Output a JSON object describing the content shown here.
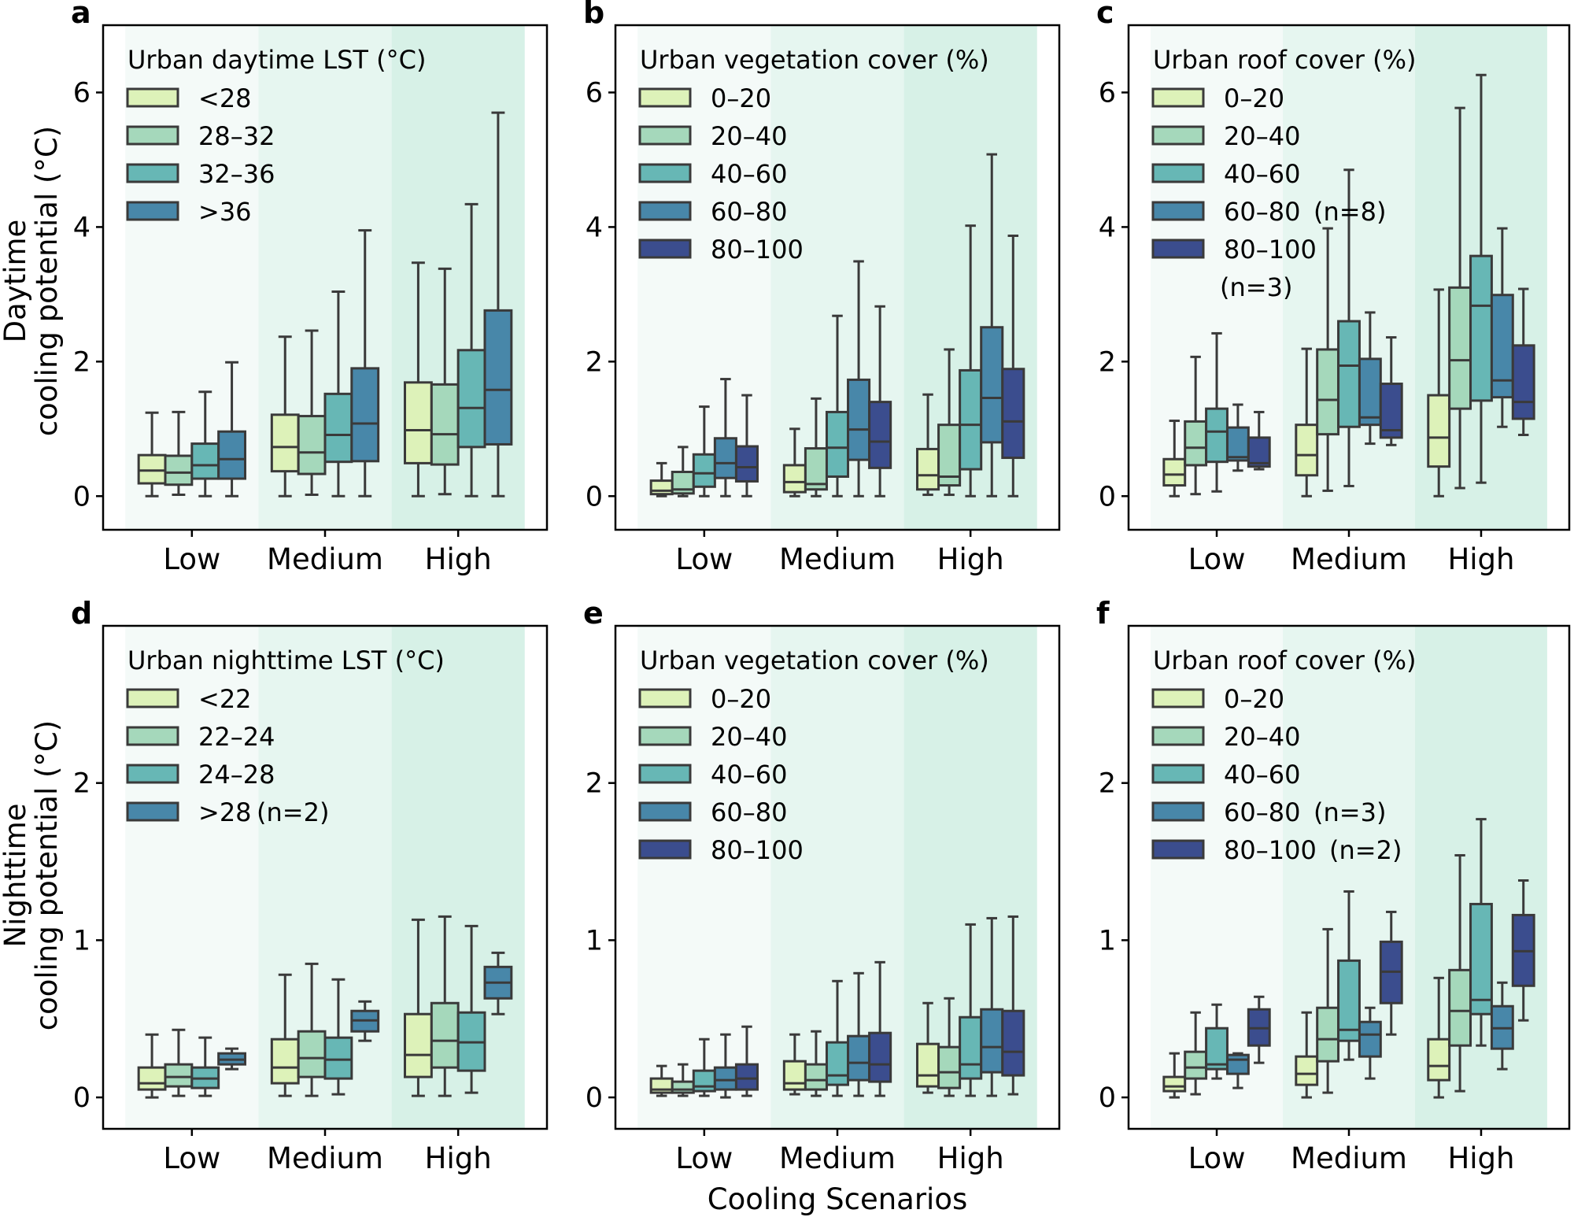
{
  "figure": {
    "xlabel": "Cooling Scenarios",
    "row_ylabels": [
      [
        "Daytime",
        "cooling potential (°C)"
      ],
      [
        "Nighttime",
        "cooling potential (°C)"
      ]
    ],
    "colors": {
      "series": [
        "#ddf2b9",
        "#a5d8bb",
        "#67b7b5",
        "#4887a9",
        "#3b4d8e"
      ],
      "bands": [
        "#f4faf8",
        "#e6f6f0",
        "#d7f1e7"
      ],
      "lines": "#3a3a3a"
    }
  },
  "chart_data": [
    {
      "panel": "a",
      "type": "box",
      "categories": [
        "Low",
        "Medium",
        "High"
      ],
      "ylim": [
        -0.5,
        7.0
      ],
      "yticks": [
        "0",
        "2",
        "4",
        "6"
      ],
      "ytick_values": [
        0,
        2,
        4,
        6
      ],
      "legend": {
        "title": "Urban daytime LST (°C)",
        "placement": "top-left",
        "entries": [
          {
            "label": "<28"
          },
          {
            "label": "28–32"
          },
          {
            "label": "32–36"
          },
          {
            "label": ">36"
          }
        ]
      },
      "stats_order": [
        "min",
        "q1",
        "median",
        "q3",
        "max"
      ],
      "series": [
        {
          "name": "<28",
          "boxes": [
            [
              0.0,
              0.19,
              0.38,
              0.61,
              1.24
            ],
            [
              0.0,
              0.37,
              0.73,
              1.21,
              2.37
            ],
            [
              0.0,
              0.49,
              0.98,
              1.69,
              3.47
            ]
          ]
        },
        {
          "name": "28–32",
          "boxes": [
            [
              0.02,
              0.17,
              0.35,
              0.6,
              1.25
            ],
            [
              0.02,
              0.33,
              0.65,
              1.19,
              2.46
            ],
            [
              0.03,
              0.47,
              0.92,
              1.66,
              3.38
            ]
          ]
        },
        {
          "name": "32–36",
          "boxes": [
            [
              0.0,
              0.26,
              0.46,
              0.78,
              1.55
            ],
            [
              0.0,
              0.51,
              0.91,
              1.52,
              3.04
            ],
            [
              0.0,
              0.73,
              1.31,
              2.17,
              4.34
            ]
          ]
        },
        {
          "name": ">36",
          "boxes": [
            [
              0.0,
              0.26,
              0.55,
              0.96,
              1.99
            ],
            [
              0.0,
              0.52,
              1.08,
              1.9,
              3.95
            ],
            [
              0.0,
              0.77,
              1.58,
              2.76,
              5.7
            ]
          ]
        }
      ]
    },
    {
      "panel": "b",
      "type": "box",
      "categories": [
        "Low",
        "Medium",
        "High"
      ],
      "ylim": [
        -0.5,
        7.0
      ],
      "yticks": [
        "0",
        "2",
        "4",
        "6"
      ],
      "ytick_values": [
        0,
        2,
        4,
        6
      ],
      "legend": {
        "title": "Urban vegetation cover (%)",
        "placement": "top-left",
        "entries": [
          {
            "label": "0–20"
          },
          {
            "label": "20–40"
          },
          {
            "label": "40–60"
          },
          {
            "label": "60–80"
          },
          {
            "label": "80–100"
          }
        ]
      },
      "stats_order": [
        "min",
        "q1",
        "median",
        "q3",
        "max"
      ],
      "series": [
        {
          "name": "0–20",
          "boxes": [
            [
              0.0,
              0.03,
              0.08,
              0.23,
              0.49
            ],
            [
              0.0,
              0.06,
              0.21,
              0.46,
              1.0
            ],
            [
              0.02,
              0.1,
              0.31,
              0.7,
              1.51
            ]
          ]
        },
        {
          "name": "20–40",
          "boxes": [
            [
              0.0,
              0.04,
              0.1,
              0.36,
              0.73
            ],
            [
              0.0,
              0.1,
              0.18,
              0.71,
              1.45
            ],
            [
              0.02,
              0.16,
              0.29,
              1.06,
              2.18
            ]
          ]
        },
        {
          "name": "40–60",
          "boxes": [
            [
              0.0,
              0.14,
              0.34,
              0.62,
              1.33
            ],
            [
              0.0,
              0.29,
              0.72,
              1.25,
              2.68
            ],
            [
              0.0,
              0.4,
              1.06,
              1.87,
              4.02
            ]
          ]
        },
        {
          "name": "60–80",
          "boxes": [
            [
              0.0,
              0.27,
              0.49,
              0.86,
              1.74
            ],
            [
              0.0,
              0.54,
              0.99,
              1.73,
              3.49
            ],
            [
              0.0,
              0.8,
              1.46,
              2.51,
              5.08
            ]
          ]
        },
        {
          "name": "80–100",
          "boxes": [
            [
              0.0,
              0.22,
              0.43,
              0.74,
              1.5
            ],
            [
              0.0,
              0.42,
              0.81,
              1.4,
              2.82
            ],
            [
              0.0,
              0.57,
              1.11,
              1.89,
              3.87
            ]
          ]
        }
      ]
    },
    {
      "panel": "c",
      "type": "box",
      "categories": [
        "Low",
        "Medium",
        "High"
      ],
      "ylim": [
        -0.5,
        7.0
      ],
      "yticks": [
        "0",
        "2",
        "4",
        "6"
      ],
      "ytick_values": [
        0,
        2,
        4,
        6
      ],
      "legend": {
        "title": "Urban roof cover (%)",
        "placement": "top-left",
        "entries": [
          {
            "label": "0–20"
          },
          {
            "label": "20–40"
          },
          {
            "label": "40–60"
          },
          {
            "label": "60–80",
            "note": "(n=8)"
          },
          {
            "label": "80–100",
            "note": "(n=3)"
          }
        ]
      },
      "stats_order": [
        "min",
        "q1",
        "median",
        "q3",
        "max"
      ],
      "series": [
        {
          "name": "0–20",
          "boxes": [
            [
              0.0,
              0.16,
              0.32,
              0.55,
              1.12
            ],
            [
              0.0,
              0.31,
              0.61,
              1.06,
              2.19
            ],
            [
              0.0,
              0.44,
              0.87,
              1.5,
              3.07
            ]
          ]
        },
        {
          "name": "20–40",
          "boxes": [
            [
              0.03,
              0.46,
              0.72,
              1.11,
              2.07
            ],
            [
              0.08,
              0.92,
              1.43,
              2.18,
              3.98
            ],
            [
              0.12,
              1.3,
              2.02,
              3.1,
              5.77
            ]
          ]
        },
        {
          "name": "40–60",
          "boxes": [
            [
              0.07,
              0.51,
              0.96,
              1.3,
              2.42
            ],
            [
              0.15,
              1.03,
              1.94,
              2.6,
              4.85
            ],
            [
              0.2,
              1.42,
              2.83,
              3.57,
              6.26
            ]
          ]
        },
        {
          "name": "60–80",
          "boxes": [
            [
              0.38,
              0.53,
              0.58,
              1.02,
              1.36
            ],
            [
              0.78,
              1.06,
              1.17,
              2.04,
              2.73
            ],
            [
              1.03,
              1.47,
              1.72,
              2.99,
              3.98
            ]
          ]
        },
        {
          "name": "80–100",
          "boxes": [
            [
              0.4,
              0.44,
              0.49,
              0.87,
              1.25
            ],
            [
              0.76,
              0.87,
              0.98,
              1.67,
              2.36
            ],
            [
              0.91,
              1.15,
              1.4,
              2.24,
              3.08
            ]
          ]
        }
      ]
    },
    {
      "panel": "d",
      "type": "box",
      "categories": [
        "Low",
        "Medium",
        "High"
      ],
      "ylim": [
        -0.2,
        3.0
      ],
      "yticks": [
        "0",
        "1",
        "2"
      ],
      "ytick_values": [
        0,
        1,
        2
      ],
      "legend": {
        "title": "Urban nighttime LST (°C)",
        "placement": "top-left",
        "entries": [
          {
            "label": "<22"
          },
          {
            "label": "22–24"
          },
          {
            "label": "24–28"
          },
          {
            "label": ">28",
            "note": "(n=2)"
          }
        ]
      },
      "stats_order": [
        "min",
        "q1",
        "median",
        "q3",
        "max"
      ],
      "series": [
        {
          "name": "<22",
          "boxes": [
            [
              0.0,
              0.05,
              0.09,
              0.19,
              0.4
            ],
            [
              0.01,
              0.09,
              0.19,
              0.37,
              0.78
            ],
            [
              0.01,
              0.13,
              0.27,
              0.53,
              1.13
            ]
          ]
        },
        {
          "name": "22–24",
          "boxes": [
            [
              0.01,
              0.07,
              0.13,
              0.21,
              0.43
            ],
            [
              0.01,
              0.13,
              0.25,
              0.42,
              0.85
            ],
            [
              0.01,
              0.19,
              0.36,
              0.6,
              1.15
            ]
          ]
        },
        {
          "name": "24–28",
          "boxes": [
            [
              0.01,
              0.06,
              0.12,
              0.19,
              0.38
            ],
            [
              0.02,
              0.12,
              0.24,
              0.38,
              0.75
            ],
            [
              0.03,
              0.17,
              0.35,
              0.54,
              1.09
            ]
          ]
        },
        {
          "name": ">28",
          "boxes": [
            [
              0.18,
              0.21,
              0.24,
              0.28,
              0.31
            ],
            [
              0.36,
              0.42,
              0.49,
              0.55,
              0.61
            ],
            [
              0.53,
              0.63,
              0.73,
              0.83,
              0.92
            ]
          ]
        }
      ]
    },
    {
      "panel": "e",
      "type": "box",
      "categories": [
        "Low",
        "Medium",
        "High"
      ],
      "ylim": [
        -0.2,
        3.0
      ],
      "yticks": [
        "0",
        "1",
        "2"
      ],
      "ytick_values": [
        0,
        1,
        2
      ],
      "legend": {
        "title": "Urban vegetation cover (%)",
        "placement": "top-left",
        "entries": [
          {
            "label": "0–20"
          },
          {
            "label": "20–40"
          },
          {
            "label": "40–60"
          },
          {
            "label": "60–80"
          },
          {
            "label": "80–100"
          }
        ]
      },
      "stats_order": [
        "min",
        "q1",
        "median",
        "q3",
        "max"
      ],
      "series": [
        {
          "name": "0–20",
          "boxes": [
            [
              0.01,
              0.03,
              0.05,
              0.12,
              0.2
            ],
            [
              0.02,
              0.05,
              0.09,
              0.23,
              0.4
            ],
            [
              0.03,
              0.07,
              0.14,
              0.34,
              0.6
            ]
          ]
        },
        {
          "name": "20–40",
          "boxes": [
            [
              0.01,
              0.03,
              0.05,
              0.1,
              0.21
            ],
            [
              0.01,
              0.05,
              0.11,
              0.21,
              0.42
            ],
            [
              0.01,
              0.06,
              0.16,
              0.32,
              0.63
            ]
          ]
        },
        {
          "name": "40–60",
          "boxes": [
            [
              0.01,
              0.04,
              0.07,
              0.17,
              0.37
            ],
            [
              0.01,
              0.08,
              0.14,
              0.35,
              0.74
            ],
            [
              0.01,
              0.12,
              0.21,
              0.51,
              1.1
            ]
          ]
        },
        {
          "name": "60–80",
          "boxes": [
            [
              0.0,
              0.05,
              0.11,
              0.19,
              0.4
            ],
            [
              0.01,
              0.11,
              0.22,
              0.39,
              0.79
            ],
            [
              0.01,
              0.16,
              0.32,
              0.56,
              1.14
            ]
          ]
        },
        {
          "name": "80–100",
          "boxes": [
            [
              0.01,
              0.05,
              0.12,
              0.21,
              0.45
            ],
            [
              0.01,
              0.1,
              0.21,
              0.41,
              0.86
            ],
            [
              0.02,
              0.14,
              0.29,
              0.55,
              1.15
            ]
          ]
        }
      ]
    },
    {
      "panel": "f",
      "type": "box",
      "categories": [
        "Low",
        "Medium",
        "High"
      ],
      "ylim": [
        -0.2,
        3.0
      ],
      "yticks": [
        "0",
        "1",
        "2"
      ],
      "ytick_values": [
        0,
        1,
        2
      ],
      "legend": {
        "title": "Urban roof cover (%)",
        "placement": "top-left",
        "entries": [
          {
            "label": "0–20"
          },
          {
            "label": "20–40"
          },
          {
            "label": "40–60"
          },
          {
            "label": "60–80",
            "note": "(n=3)"
          },
          {
            "label": "80–100",
            "note": "(n=2)"
          }
        ]
      },
      "stats_order": [
        "min",
        "q1",
        "median",
        "q3",
        "max"
      ],
      "series": [
        {
          "name": "0–20",
          "boxes": [
            [
              0.0,
              0.04,
              0.07,
              0.13,
              0.28
            ],
            [
              0.0,
              0.08,
              0.15,
              0.26,
              0.54
            ],
            [
              0.0,
              0.11,
              0.2,
              0.37,
              0.76
            ]
          ]
        },
        {
          "name": "20–40",
          "boxes": [
            [
              0.02,
              0.12,
              0.19,
              0.29,
              0.54
            ],
            [
              0.03,
              0.23,
              0.37,
              0.57,
              1.07
            ],
            [
              0.04,
              0.33,
              0.55,
              0.81,
              1.54
            ]
          ]
        },
        {
          "name": "40–60",
          "boxes": [
            [
              0.12,
              0.18,
              0.21,
              0.44,
              0.59
            ],
            [
              0.24,
              0.36,
              0.43,
              0.87,
              1.31
            ],
            [
              0.33,
              0.53,
              0.62,
              1.23,
              1.77
            ]
          ]
        },
        {
          "name": "60–80",
          "boxes": [
            [
              0.06,
              0.15,
              0.24,
              0.27,
              0.28
            ],
            [
              0.12,
              0.26,
              0.4,
              0.48,
              0.57
            ],
            [
              0.18,
              0.31,
              0.44,
              0.58,
              0.73
            ]
          ]
        },
        {
          "name": "80–100",
          "boxes": [
            [
              0.22,
              0.33,
              0.44,
              0.56,
              0.64
            ],
            [
              0.4,
              0.6,
              0.8,
              0.99,
              1.18
            ],
            [
              0.49,
              0.71,
              0.93,
              1.16,
              1.38
            ]
          ]
        }
      ]
    }
  ]
}
